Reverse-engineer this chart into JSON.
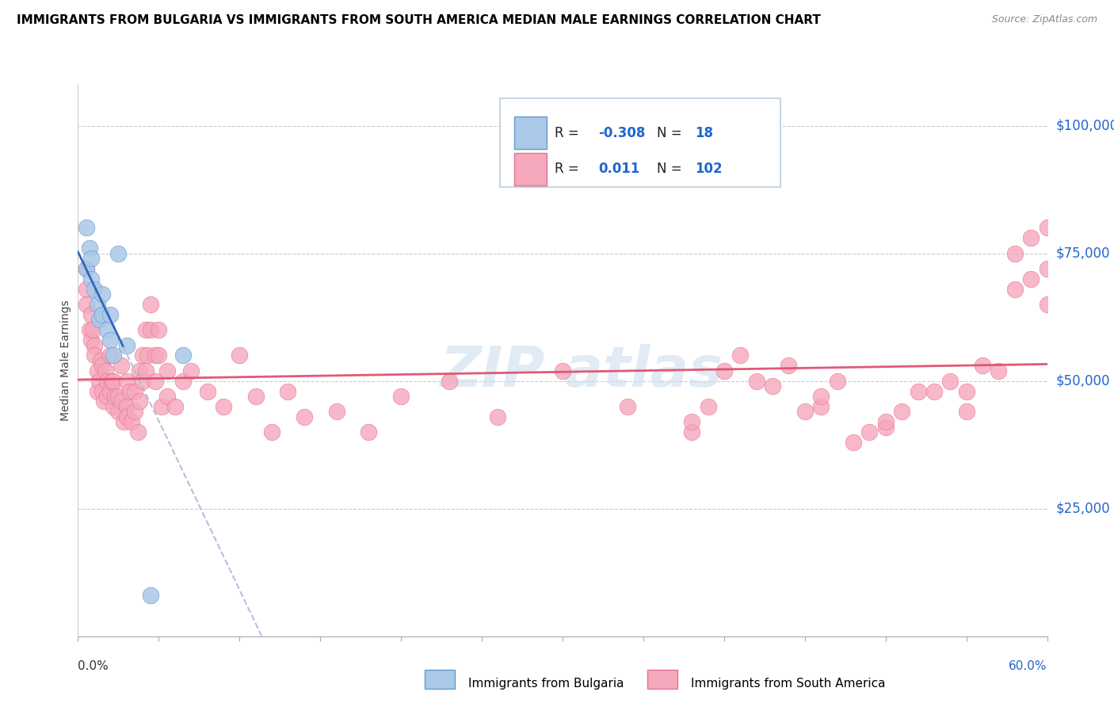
{
  "title": "IMMIGRANTS FROM BULGARIA VS IMMIGRANTS FROM SOUTH AMERICA MEDIAN MALE EARNINGS CORRELATION CHART",
  "source": "Source: ZipAtlas.com",
  "ylabel": "Median Male Earnings",
  "ytick_labels": [
    "$25,000",
    "$50,000",
    "$75,000",
    "$100,000"
  ],
  "ytick_values": [
    25000,
    50000,
    75000,
    100000
  ],
  "xlim": [
    0.0,
    0.6
  ],
  "ylim": [
    0,
    108000
  ],
  "bulgaria_color": "#aac8e8",
  "bulgaria_edge_color": "#6699cc",
  "south_america_color": "#f5a8bc",
  "south_america_edge_color": "#e87090",
  "bulgaria_line_color": "#3366bb",
  "south_america_line_color": "#e05070",
  "dashed_line_color": "#aabbdd",
  "watermark_color": "#c5d8ee",
  "legend_box_color": "#aabbcc",
  "bulgaria_points_x": [
    0.005,
    0.005,
    0.007,
    0.008,
    0.008,
    0.01,
    0.012,
    0.013,
    0.015,
    0.015,
    0.018,
    0.02,
    0.02,
    0.022,
    0.025,
    0.03,
    0.045,
    0.065
  ],
  "bulgaria_points_y": [
    72000,
    80000,
    76000,
    70000,
    74000,
    68000,
    65000,
    62000,
    63000,
    67000,
    60000,
    58000,
    63000,
    55000,
    75000,
    57000,
    8000,
    55000
  ],
  "south_america_points_x": [
    0.005,
    0.005,
    0.005,
    0.007,
    0.008,
    0.008,
    0.009,
    0.01,
    0.01,
    0.012,
    0.012,
    0.013,
    0.014,
    0.015,
    0.015,
    0.016,
    0.017,
    0.018,
    0.018,
    0.02,
    0.02,
    0.021,
    0.022,
    0.022,
    0.023,
    0.025,
    0.025,
    0.027,
    0.027,
    0.028,
    0.03,
    0.03,
    0.03,
    0.032,
    0.033,
    0.035,
    0.035,
    0.037,
    0.038,
    0.038,
    0.04,
    0.04,
    0.042,
    0.042,
    0.043,
    0.045,
    0.045,
    0.048,
    0.048,
    0.05,
    0.05,
    0.052,
    0.055,
    0.055,
    0.06,
    0.065,
    0.07,
    0.08,
    0.09,
    0.1,
    0.11,
    0.12,
    0.13,
    0.14,
    0.16,
    0.18,
    0.2,
    0.23,
    0.26,
    0.3,
    0.34,
    0.38,
    0.42,
    0.46,
    0.5,
    0.53,
    0.55,
    0.56,
    0.58,
    0.59,
    0.6,
    0.6,
    0.6,
    0.59,
    0.58,
    0.57,
    0.55,
    0.54,
    0.52,
    0.51,
    0.5,
    0.49,
    0.48,
    0.47,
    0.46,
    0.45,
    0.44,
    0.43,
    0.41,
    0.4,
    0.39,
    0.38
  ],
  "south_america_points_y": [
    68000,
    72000,
    65000,
    60000,
    63000,
    58000,
    60000,
    57000,
    55000,
    52000,
    48000,
    50000,
    54000,
    53000,
    48000,
    46000,
    52000,
    50000,
    47000,
    55000,
    48000,
    50000,
    45000,
    50000,
    47000,
    47000,
    44000,
    53000,
    46000,
    42000,
    50000,
    45000,
    43000,
    48000,
    42000,
    48000,
    44000,
    40000,
    52000,
    46000,
    55000,
    50000,
    60000,
    52000,
    55000,
    65000,
    60000,
    55000,
    50000,
    60000,
    55000,
    45000,
    52000,
    47000,
    45000,
    50000,
    52000,
    48000,
    45000,
    55000,
    47000,
    40000,
    48000,
    43000,
    44000,
    40000,
    47000,
    50000,
    43000,
    52000,
    45000,
    40000,
    50000,
    45000,
    41000,
    48000,
    44000,
    53000,
    75000,
    78000,
    80000,
    72000,
    65000,
    70000,
    68000,
    52000,
    48000,
    50000,
    48000,
    44000,
    42000,
    40000,
    38000,
    50000,
    47000,
    44000,
    53000,
    49000,
    55000,
    52000,
    45000,
    42000
  ]
}
